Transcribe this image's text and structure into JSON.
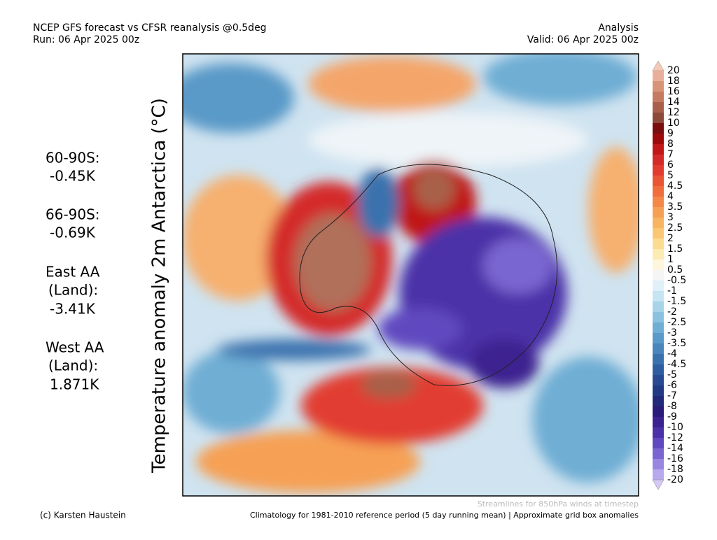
{
  "header": {
    "left": [
      "NCEP GFS forecast vs CFSR reanalysis @0.5deg",
      "Run: 06 Apr 2025 00z"
    ],
    "right": [
      "Analysis",
      "Valid: 06 Apr 2025 00z"
    ]
  },
  "axis_label": "Temperature anomaly 2m Antarctica (°C)",
  "stats": [
    "60-90S:",
    "-0.45K",
    "66-90S:",
    "-0.69K",
    "East AA",
    "(Land):",
    "-3.41K",
    "West AA",
    "(Land):",
    "1.871K"
  ],
  "colorbar": {
    "labels": [
      "20",
      "18",
      "16",
      "14",
      "12",
      "10",
      "9",
      "8",
      "7",
      "6",
      "5",
      "4.5",
      "4",
      "3.5",
      "3",
      "2.5",
      "2",
      "1.5",
      "1",
      "0.5",
      "-0.5",
      "-1",
      "-1.5",
      "-2",
      "-2.5",
      "-3",
      "-3.5",
      "-4",
      "-4.5",
      "-5",
      "-6",
      "-7",
      "-8",
      "-9",
      "-10",
      "-12",
      "-14",
      "-16",
      "-18",
      "-20"
    ],
    "colors": [
      "#f5c9b8",
      "#e8b09a",
      "#d89478",
      "#c47b60",
      "#a8604a",
      "#8c4a38",
      "#7a0d0d",
      "#9e0a0a",
      "#c01818",
      "#d42a2a",
      "#e23c30",
      "#ea5535",
      "#f06d3d",
      "#f48848",
      "#f6a055",
      "#f8b460",
      "#fac874",
      "#fcdc90",
      "#fdebb4",
      "#fdf5dc",
      "#f5f5f5",
      "#dff0f8",
      "#c6e4f2",
      "#a8d4ea",
      "#8cc2e0",
      "#70aed4",
      "#5a9ac8",
      "#4886bc",
      "#3a72ae",
      "#2e5ea0",
      "#284a92",
      "#223a84",
      "#22287a",
      "#2a1a7a",
      "#3c2290",
      "#4c30a8",
      "#6048c0",
      "#7a66d0",
      "#9886e0",
      "#b8a8ec",
      "#d4c8f6"
    ]
  },
  "footer": {
    "credit": "(c) Karsten Haustein",
    "note": "Streamlines for 850hPa winds at timestep",
    "climatology": "Climatology for 1981-2010 reference period (5 day running mean) | Approximate grid box anomalies"
  }
}
